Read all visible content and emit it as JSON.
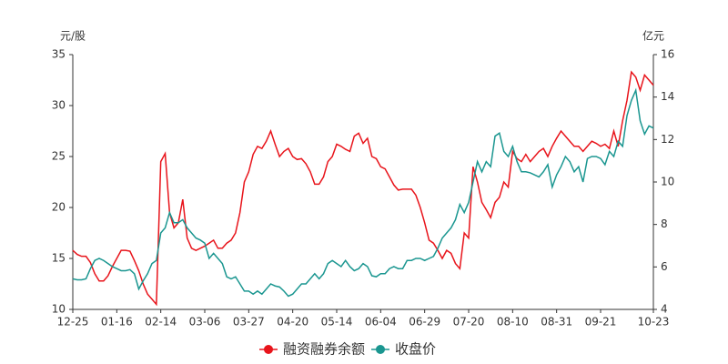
{
  "chart_data": {
    "type": "line",
    "y_label": "元/股",
    "y2_label": "亿元",
    "categories": [
      "12-25",
      null,
      null,
      null,
      null,
      null,
      null,
      null,
      null,
      null,
      "01-16",
      null,
      null,
      null,
      null,
      null,
      null,
      null,
      null,
      null,
      "02-14",
      null,
      null,
      null,
      null,
      null,
      null,
      null,
      null,
      null,
      "03-06",
      null,
      null,
      null,
      null,
      null,
      null,
      null,
      null,
      null,
      "03-27",
      null,
      null,
      null,
      null,
      null,
      null,
      null,
      null,
      null,
      "04-20",
      null,
      null,
      null,
      null,
      null,
      null,
      null,
      null,
      null,
      "05-14",
      null,
      null,
      null,
      null,
      null,
      null,
      null,
      null,
      null,
      "06-04",
      null,
      null,
      null,
      null,
      null,
      null,
      null,
      null,
      null,
      "06-29",
      null,
      null,
      null,
      null,
      null,
      null,
      null,
      null,
      null,
      "07-20",
      null,
      null,
      null,
      null,
      null,
      null,
      null,
      null,
      null,
      "08-10",
      null,
      null,
      null,
      null,
      null,
      null,
      null,
      null,
      null,
      "08-31",
      null,
      null,
      null,
      null,
      null,
      null,
      null,
      null,
      null,
      "09-21",
      null,
      null,
      null,
      null,
      null,
      null,
      null,
      null,
      null,
      null,
      null,
      "10-23"
    ],
    "series": [
      {
        "name": "融资融券余额",
        "color": "#e8141b",
        "axis": "y2",
        "values": [
          6.78,
          6.59,
          6.5,
          6.5,
          6.21,
          5.68,
          5.34,
          5.34,
          5.58,
          6.02,
          6.4,
          6.78,
          6.78,
          6.74,
          6.3,
          5.82,
          5.2,
          4.72,
          4.48,
          4.24,
          10.96,
          11.34,
          8.56,
          7.84,
          8.08,
          9.18,
          7.36,
          6.88,
          6.78,
          6.88,
          6.98,
          7.12,
          7.26,
          6.88,
          6.88,
          7.12,
          7.26,
          7.6,
          8.56,
          10.0,
          10.48,
          11.3,
          11.68,
          11.58,
          11.92,
          12.4,
          11.78,
          11.2,
          11.44,
          11.58,
          11.2,
          11.06,
          11.1,
          10.86,
          10.48,
          9.9,
          9.9,
          10.24,
          10.96,
          11.2,
          11.78,
          11.68,
          11.54,
          11.44,
          12.16,
          12.3,
          11.82,
          12.06,
          11.2,
          11.1,
          10.72,
          10.62,
          10.24,
          9.86,
          9.62,
          9.66,
          9.66,
          9.66,
          9.38,
          8.8,
          8.08,
          7.26,
          7.12,
          6.78,
          6.4,
          6.78,
          6.64,
          6.16,
          5.92,
          7.6,
          7.36,
          10.72,
          10.0,
          9.04,
          8.7,
          8.32,
          9.04,
          9.28,
          10.0,
          9.76,
          11.44,
          11.1,
          10.96,
          11.3,
          10.96,
          11.2,
          11.44,
          11.58,
          11.2,
          11.68,
          12.06,
          12.4,
          12.16,
          11.92,
          11.68,
          11.68,
          11.44,
          11.68,
          11.92,
          11.82,
          11.68,
          11.78,
          11.58,
          12.4,
          11.68,
          12.88,
          13.84,
          15.18,
          14.94,
          14.32,
          15.04,
          14.8,
          14.56
        ]
      },
      {
        "name": "收盘价",
        "color": "#1a9690",
        "values": [
          13.0,
          12.9,
          12.9,
          13.0,
          14.0,
          14.8,
          15.0,
          14.8,
          14.5,
          14.2,
          14.0,
          13.8,
          13.8,
          13.9,
          13.5,
          12.0,
          12.8,
          13.5,
          14.5,
          14.8,
          17.5,
          18.0,
          19.5,
          18.5,
          18.5,
          18.8,
          18.0,
          17.5,
          17.0,
          16.8,
          16.5,
          15.0,
          15.5,
          15.0,
          14.5,
          13.2,
          13.0,
          13.2,
          12.5,
          11.8,
          11.8,
          11.5,
          11.8,
          11.5,
          12.0,
          12.5,
          12.3,
          12.2,
          11.8,
          11.3,
          11.5,
          12.0,
          12.5,
          12.5,
          13.0,
          13.5,
          13.0,
          13.5,
          14.5,
          14.8,
          14.5,
          14.2,
          14.8,
          14.2,
          13.8,
          14.0,
          14.5,
          14.2,
          13.3,
          13.2,
          13.5,
          13.5,
          14.0,
          14.2,
          14.0,
          14.0,
          14.8,
          14.8,
          15.0,
          15.0,
          14.8,
          15.0,
          15.2,
          16.0,
          17.0,
          17.5,
          18.0,
          18.8,
          20.3,
          19.5,
          20.5,
          22.5,
          24.5,
          23.5,
          24.5,
          24.0,
          27.0,
          27.3,
          25.5,
          25.0,
          26.0,
          24.5,
          23.5,
          23.5,
          23.4,
          23.2,
          23.0,
          23.5,
          24.2,
          22.0,
          23.2,
          24.0,
          25.0,
          24.5,
          23.5,
          24.0,
          22.5,
          24.8,
          25.0,
          25.0,
          24.8,
          24.2,
          25.5,
          25.0,
          26.5,
          26.0,
          29.0,
          30.5,
          31.5,
          28.5,
          27.2,
          28.0,
          27.8
        ]
      }
    ],
    "ylim": [
      10,
      35
    ],
    "yticks": [
      10,
      15,
      20,
      25,
      30,
      35
    ],
    "y2lim": [
      4,
      16
    ],
    "y2ticks": [
      4,
      6,
      8,
      10,
      12,
      14,
      16
    ],
    "grid": false,
    "legend": "bottom"
  }
}
